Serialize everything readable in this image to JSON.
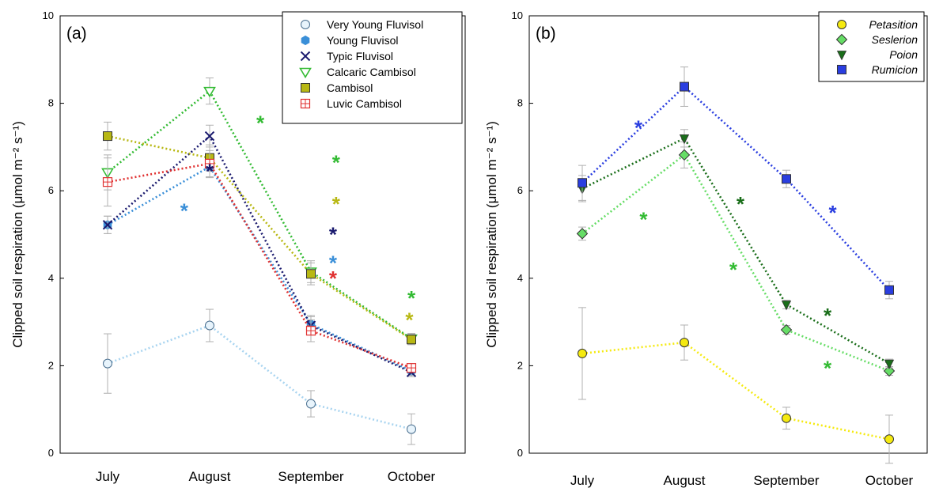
{
  "chart_data": [
    {
      "type": "line",
      "panel_label": "(a)",
      "categories": [
        "July",
        "August",
        "September",
        "October"
      ],
      "ylabel": "Clipped soil respiration (μmol m⁻² s⁻¹)",
      "ylim": [
        0,
        10
      ],
      "yticks": [
        "0",
        "2",
        "4",
        "6",
        "8",
        "10"
      ],
      "grid": false,
      "legend_position": "top-right",
      "series": [
        {
          "name": "Very Young Fluvisol",
          "marker": "circle-open",
          "color": "#a8d4f0",
          "values": [
            2.05,
            2.92,
            1.13,
            0.55
          ],
          "errors": [
            0.68,
            0.37,
            0.3,
            0.35
          ]
        },
        {
          "name": "Young Fluvisol",
          "marker": "hexagon-filled",
          "color": "#3a8fd8",
          "values": [
            5.22,
            6.55,
            2.95,
            1.88
          ],
          "errors": [
            0.2,
            0.25,
            0.2,
            0.1
          ]
        },
        {
          "name": "Typic Fluvisol",
          "marker": "x",
          "color": "#1a1a6e",
          "values": [
            5.22,
            7.25,
            2.92,
            1.85
          ],
          "errors": [
            0.2,
            0.25,
            0.2,
            0.1
          ]
        },
        {
          "name": "Calcaric Cambisol",
          "marker": "triangle-down-open",
          "color": "#33bb33",
          "values": [
            6.42,
            8.28,
            4.15,
            2.62
          ],
          "errors": [
            0.4,
            0.3,
            0.25,
            0.12
          ]
        },
        {
          "name": "Cambisol",
          "marker": "square-filled",
          "color": "#b8b814",
          "values": [
            7.25,
            6.75,
            4.1,
            2.6
          ],
          "errors": [
            0.32,
            0.3,
            0.25,
            0.12
          ]
        },
        {
          "name": "Luvic Cambisol",
          "marker": "square-plus-open",
          "color": "#e03030",
          "values": [
            6.2,
            6.62,
            2.8,
            1.95
          ],
          "errors": [
            0.55,
            0.3,
            0.25,
            0.1
          ]
        }
      ],
      "annotations": [
        {
          "text": "*",
          "x": 1.5,
          "y": 7.6,
          "color": "#33bb33"
        },
        {
          "text": "*",
          "x": 1.0,
          "y": 6.5,
          "color": "#1a1a6e"
        },
        {
          "text": "*",
          "x": 0.75,
          "y": 5.6,
          "color": "#3a8fd8"
        },
        {
          "text": "*",
          "x": 2.25,
          "y": 6.7,
          "color": "#33bb33"
        },
        {
          "text": "*",
          "x": 2.25,
          "y": 5.75,
          "color": "#b8b814"
        },
        {
          "text": "*",
          "x": 2.22,
          "y": 5.05,
          "color": "#1a1a6e"
        },
        {
          "text": "*",
          "x": 2.22,
          "y": 4.4,
          "color": "#3a8fd8"
        },
        {
          "text": "*",
          "x": 2.22,
          "y": 4.05,
          "color": "#e03030"
        },
        {
          "text": "*",
          "x": 3.0,
          "y": 3.6,
          "color": "#33bb33"
        },
        {
          "text": "*",
          "x": 2.98,
          "y": 3.1,
          "color": "#b8b814"
        }
      ]
    },
    {
      "type": "line",
      "panel_label": "(b)",
      "categories": [
        "July",
        "August",
        "September",
        "October"
      ],
      "ylabel": "Clipped soil respiration (μmol m⁻² s⁻¹)",
      "ylim": [
        0,
        10
      ],
      "yticks": [
        "0",
        "2",
        "4",
        "6",
        "8",
        "10"
      ],
      "grid": false,
      "legend_position": "top-right",
      "series": [
        {
          "name": "Petasition",
          "marker": "circle-filled",
          "color": "#f5ea10",
          "values": [
            2.28,
            2.53,
            0.8,
            0.32
          ],
          "errors": [
            1.05,
            0.4,
            0.25,
            0.55
          ]
        },
        {
          "name": "Seslerion",
          "marker": "diamond-filled",
          "color": "#66dd66",
          "values": [
            5.02,
            6.82,
            2.82,
            1.88
          ],
          "errors": [
            0.15,
            0.3,
            0.1,
            0.1
          ]
        },
        {
          "name": "Poion",
          "marker": "triangle-down-filled",
          "color": "#1a6e1a",
          "values": [
            6.05,
            7.2,
            3.4,
            2.05
          ],
          "errors": [
            0.3,
            0.2,
            0.1,
            0.1
          ]
        },
        {
          "name": "Rumicion",
          "marker": "square-filled",
          "color": "#2a3ee0",
          "values": [
            6.18,
            8.38,
            6.27,
            3.73
          ],
          "errors": [
            0.4,
            0.45,
            0.2,
            0.2
          ]
        }
      ],
      "annotations": [
        {
          "text": "*",
          "x": 0.55,
          "y": 7.5,
          "color": "#2a3ee0"
        },
        {
          "text": "*",
          "x": 0.6,
          "y": 5.4,
          "color": "#33bb33"
        },
        {
          "text": "*",
          "x": 1.55,
          "y": 5.75,
          "color": "#1a6e1a"
        },
        {
          "text": "*",
          "x": 1.48,
          "y": 4.25,
          "color": "#33bb33"
        },
        {
          "text": "*",
          "x": 2.45,
          "y": 5.55,
          "color": "#2a3ee0"
        },
        {
          "text": "*",
          "x": 2.4,
          "y": 3.2,
          "color": "#1a6e1a"
        },
        {
          "text": "*",
          "x": 2.4,
          "y": 2.0,
          "color": "#33bb33"
        }
      ]
    }
  ]
}
